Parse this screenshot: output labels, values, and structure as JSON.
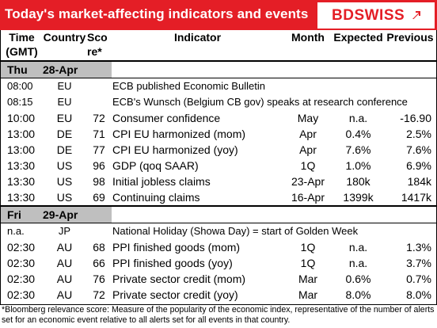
{
  "header": {
    "title": "Today's market-affecting indicators and events",
    "logo_text": "BDSWISS",
    "brand_color": "#e41e26"
  },
  "columns": {
    "time": "Time",
    "time2": "(GMT)",
    "country": "Country",
    "score": "Sco",
    "score2": "re*",
    "indicator": "Indicator",
    "month": "Month",
    "expected": "Expected",
    "previous": "Previous"
  },
  "days": [
    {
      "weekday": "Thu",
      "date": "28-Apr",
      "rows": [
        {
          "time": "08:00",
          "country": "EU",
          "score": "",
          "indicator": "ECB published Economic Bulletin",
          "month": "",
          "expected": "",
          "previous": ""
        },
        {
          "time": "08:15",
          "country": "EU",
          "score": "",
          "indicator": "ECB's Wunsch (Belgium CB gov) speaks at research conference",
          "month": "",
          "expected": "",
          "previous": ""
        },
        {
          "time": "10:00",
          "country": "EU",
          "score": "72",
          "indicator": "Consumer confidence",
          "month": "May",
          "expected": "n.a.",
          "previous": "-16.90"
        },
        {
          "time": "13:00",
          "country": "DE",
          "score": "71",
          "indicator": "CPI EU harmonized (mom)",
          "month": "Apr",
          "expected": "0.4%",
          "previous": "2.5%"
        },
        {
          "time": "13:00",
          "country": "DE",
          "score": "77",
          "indicator": "CPI EU harmonized (yoy)",
          "month": "Apr",
          "expected": "7.6%",
          "previous": "7.6%"
        },
        {
          "time": "13:30",
          "country": "US",
          "score": "96",
          "indicator": "GDP (qoq SAAR)",
          "month": "1Q",
          "expected": "1.0%",
          "previous": "6.9%"
        },
        {
          "time": "13:30",
          "country": "US",
          "score": "98",
          "indicator": "Initial jobless claims",
          "month": "23-Apr",
          "expected": "180k",
          "previous": "184k"
        },
        {
          "time": "13:30",
          "country": "US",
          "score": "69",
          "indicator": "Continuing claims",
          "month": "16-Apr",
          "expected": "1399k",
          "previous": "1417k"
        }
      ]
    },
    {
      "weekday": "Fri",
      "date": "29-Apr",
      "rows": [
        {
          "time": "n.a.",
          "country": "JP",
          "score": "",
          "indicator": "National Holiday (Showa Day) = start of Golden Week",
          "month": "",
          "expected": "",
          "previous": ""
        },
        {
          "time": "02:30",
          "country": "AU",
          "score": "68",
          "indicator": "PPI finished goods (mom)",
          "month": "1Q",
          "expected": "n.a.",
          "previous": "1.3%"
        },
        {
          "time": "02:30",
          "country": "AU",
          "score": "66",
          "indicator": "PPI finished goods (yoy)",
          "month": "1Q",
          "expected": "n.a.",
          "previous": "3.7%"
        },
        {
          "time": "02:30",
          "country": "AU",
          "score": "76",
          "indicator": "Private sector credit (mom)",
          "month": "Mar",
          "expected": "0.6%",
          "previous": "0.7%"
        },
        {
          "time": "02:30",
          "country": "AU",
          "score": "72",
          "indicator": "Private sector credit (yoy)",
          "month": "Mar",
          "expected": "8.0%",
          "previous": "8.0%"
        }
      ]
    }
  ],
  "footnote": "*Bloomberg relevance score: Measure of the popularity of the economic index, representative of the number of alerts set for an economic event relative to all alerts set for all events in that country."
}
